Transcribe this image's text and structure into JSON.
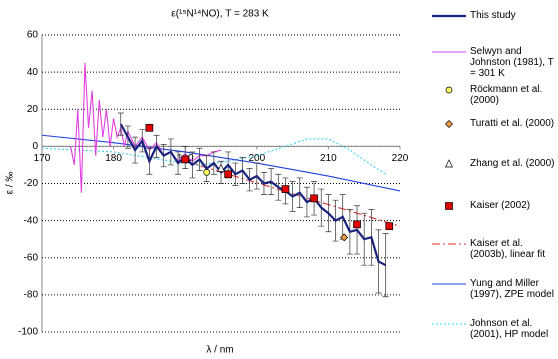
{
  "chart_data": {
    "type": "line",
    "title": "ε(¹⁵N¹⁴NO), T = 283 K",
    "x_label": "λ / nm",
    "y_label": "ε / ‰",
    "xlim": [
      170,
      220
    ],
    "xticks": [
      170,
      180,
      190,
      200,
      210,
      220
    ],
    "ylim": [
      -100,
      60
    ],
    "yticks": [
      -100,
      -80,
      -60,
      -40,
      -20,
      0,
      20,
      40,
      60
    ],
    "grid": true,
    "series": [
      {
        "name": "This study",
        "type": "line",
        "color": "#1a237e",
        "x": [
          181,
          182,
          183,
          184,
          185,
          186,
          187,
          188,
          189,
          190,
          191,
          192,
          193,
          194,
          195,
          196,
          197,
          198,
          199,
          200,
          201,
          202,
          203,
          204,
          205,
          206,
          207,
          208,
          209,
          210,
          211,
          212,
          213,
          214,
          215,
          216,
          217,
          218
        ],
        "values": [
          12,
          5,
          -2,
          3,
          -8,
          0,
          -5,
          -3,
          -9,
          -6,
          -10,
          -7,
          -12,
          -9,
          -14,
          -10,
          -15,
          -13,
          -18,
          -16,
          -20,
          -19,
          -22,
          -24,
          -27,
          -25,
          -30,
          -28,
          -33,
          -36,
          -40,
          -38,
          -46,
          -45,
          -50,
          -49,
          -62,
          -64
        ],
        "errors": [
          6,
          6,
          7,
          6,
          7,
          6,
          6,
          7,
          6,
          6,
          7,
          6,
          7,
          6,
          6,
          7,
          6,
          7,
          6,
          7,
          6,
          7,
          7,
          7,
          8,
          8,
          8,
          9,
          10,
          10,
          11,
          12,
          12,
          13,
          14,
          15,
          17,
          17
        ]
      },
      {
        "name": "Selwyn and Johnston (1981), T = 301 K",
        "type": "line",
        "color": "#e040e0",
        "x": [
          174,
          174.5,
          175,
          175.5,
          176,
          176.5,
          177,
          177.5,
          178,
          178.5,
          179,
          179.5,
          180,
          180.5,
          181,
          181.5,
          182,
          183,
          184,
          185,
          186,
          187,
          188,
          189,
          190,
          191,
          192,
          193,
          194,
          195
        ],
        "values": [
          0,
          -10,
          20,
          -25,
          45,
          10,
          30,
          -5,
          25,
          5,
          20,
          0,
          15,
          5,
          10,
          0,
          8,
          0,
          5,
          -2,
          2,
          -5,
          -3,
          -8,
          -4,
          -8,
          -5,
          -5,
          -3,
          -2
        ]
      },
      {
        "name": "Röckmann et al. (2000)",
        "type": "scatter",
        "marker": "circle",
        "color": "#ffff66",
        "x": [
          193
        ],
        "values": [
          -14
        ]
      },
      {
        "name": "Turatti et al. (2000)",
        "type": "scatter",
        "marker": "diamond",
        "color": "#f0a040",
        "x": [
          212.2
        ],
        "values": [
          -49
        ]
      },
      {
        "name": "Zhang et al. (2000)",
        "type": "scatter",
        "marker": "triangle",
        "color": "#ffffff",
        "x": [
          195
        ],
        "values": [
          -12
        ]
      },
      {
        "name": "Kaiser (2002)",
        "type": "scatter",
        "marker": "square",
        "color": "#e00000",
        "x": [
          185,
          190,
          196,
          204,
          208,
          214,
          218.5
        ],
        "values": [
          10,
          -7,
          -15,
          -23,
          -28,
          -42,
          -43
        ]
      },
      {
        "name": "Kaiser et al. (2003b), linear fit",
        "type": "line",
        "dash": "8,3,2,3",
        "color": "#e03030",
        "x": [
          190,
          220
        ],
        "values": [
          -8,
          -43
        ]
      },
      {
        "name": "Yung and Miller (1997), ZPE model",
        "type": "line",
        "color": "#2040e0",
        "x": [
          170,
          180,
          190,
          200,
          210,
          220
        ],
        "values": [
          6,
          2,
          -3,
          -9,
          -16,
          -24
        ]
      },
      {
        "name": "Johnson et al. (2001), HP model",
        "type": "line",
        "dash": "2,2",
        "color": "#40d0f0",
        "x": [
          170,
          180,
          188,
          192,
          196,
          200,
          204,
          207,
          210,
          213,
          216,
          218
        ],
        "values": [
          -1,
          -3,
          -8,
          -10,
          -8,
          -5,
          0,
          4,
          4,
          -2,
          -10,
          -15
        ]
      }
    ]
  }
}
